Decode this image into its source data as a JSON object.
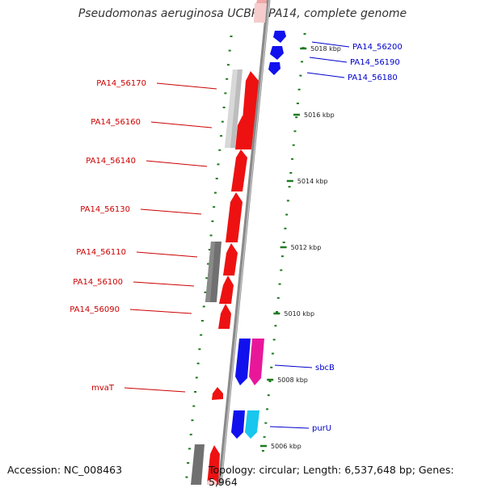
{
  "title": "Pseudomonas aeruginosa UCBPP-PA14, complete genome",
  "footer": {
    "accession": "Accession: NC_008463",
    "summary": "Topology: circular; Length: 6,537,648 bp; Genes: 5,964"
  },
  "colors": {
    "left_labels": "#cc0000",
    "right_labels": "#0000cc",
    "ticks": "#1f7a1f",
    "backbone": "#888888"
  },
  "kbp_ticks": [
    {
      "kbp": 5018,
      "label": "5018 kbp"
    },
    {
      "kbp": 5016,
      "label": "5016 kbp"
    },
    {
      "kbp": 5014,
      "label": "5014 kbp"
    },
    {
      "kbp": 5012,
      "label": "5012 kbp"
    },
    {
      "kbp": 5010,
      "label": "5010 kbp"
    },
    {
      "kbp": 5008,
      "label": "5008 kbp"
    },
    {
      "kbp": 5006,
      "label": "5006 kbp"
    }
  ],
  "left_genes": [
    {
      "name": "PA14_56170"
    },
    {
      "name": "PA14_56160"
    },
    {
      "name": "PA14_56140"
    },
    {
      "name": "PA14_56130"
    },
    {
      "name": "PA14_56110"
    },
    {
      "name": "PA14_56100"
    },
    {
      "name": "PA14_56090"
    },
    {
      "name": "mvaT"
    }
  ],
  "right_genes": [
    {
      "name": "PA14_56200"
    },
    {
      "name": "PA14_56190"
    },
    {
      "name": "PA14_56180"
    },
    {
      "name": "sbcB"
    },
    {
      "name": "purU"
    }
  ]
}
